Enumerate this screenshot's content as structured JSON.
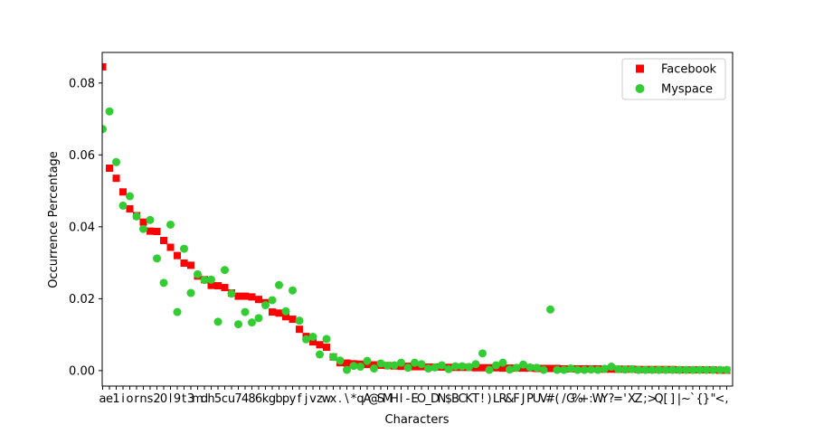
{
  "chart_data": {
    "type": "scatter",
    "title": "",
    "xlabel": "Characters",
    "ylabel": "Occurrence Percentage",
    "categories": [
      "a",
      "e",
      "1",
      "i",
      "o",
      "r",
      "n",
      "s",
      "2",
      "0",
      "l",
      "9",
      "t",
      "3",
      "m",
      "d",
      "h",
      "5",
      "c",
      "u",
      "7",
      "4",
      "8",
      "6",
      "k",
      "g",
      "b",
      "p",
      "y",
      "f",
      "j",
      "v",
      "z",
      "w",
      "x",
      ".",
      "\\",
      "*",
      "q",
      "A",
      "@",
      "S",
      "M",
      "H",
      "I",
      "-",
      "E",
      "O",
      "_",
      "D",
      "N",
      "$",
      "B",
      "C",
      "K",
      "T",
      "!",
      ")",
      "L",
      "R",
      "&",
      "F",
      "J",
      "P",
      "U",
      "V",
      "#",
      "(",
      "/",
      "G",
      "%",
      "+",
      ":",
      "W",
      "Y",
      "?",
      "=",
      "'",
      "X",
      "Z",
      ";",
      ">",
      "Q",
      "[",
      "]",
      "|",
      "~",
      "`",
      "{",
      "}",
      "\"",
      "<",
      ","
    ],
    "ylim": [
      -0.0043,
      0.0885
    ],
    "yticks": [
      0.0,
      0.02,
      0.04,
      0.06,
      0.08
    ],
    "ytick_labels": [
      "0.00",
      "0.02",
      "0.04",
      "0.06",
      "0.08"
    ],
    "grid": false,
    "legend_position": "top-right",
    "series": [
      {
        "name": "Facebook",
        "marker": "square",
        "color": "#ff0000",
        "values": [
          0.0845,
          0.0563,
          0.0535,
          0.0497,
          0.045,
          0.0431,
          0.0413,
          0.0388,
          0.0387,
          0.0362,
          0.0343,
          0.032,
          0.0299,
          0.0293,
          0.0263,
          0.0253,
          0.0237,
          0.0236,
          0.0231,
          0.0216,
          0.0207,
          0.0207,
          0.0205,
          0.0198,
          0.0189,
          0.0163,
          0.016,
          0.015,
          0.0143,
          0.0115,
          0.0095,
          0.008,
          0.0072,
          0.0065,
          0.0038,
          0.0022,
          0.0021,
          0.0019,
          0.0018,
          0.0017,
          0.0016,
          0.0015,
          0.0014,
          0.0013,
          0.0012,
          0.0012,
          0.0011,
          0.0011,
          0.001,
          0.001,
          0.001,
          0.0009,
          0.0009,
          0.0009,
          0.0009,
          0.0008,
          0.0008,
          0.0008,
          0.0008,
          0.0007,
          0.0007,
          0.0007,
          0.0007,
          0.0007,
          0.0006,
          0.0006,
          0.0006,
          0.0006,
          0.0005,
          0.0005,
          0.0005,
          0.0005,
          0.0005,
          0.0005,
          0.0004,
          0.0004,
          0.0004,
          0.0004,
          0.0004,
          0.0003,
          0.0003,
          0.0003,
          0.0003,
          0.0003,
          0.0003,
          0.0002,
          0.0002,
          0.0002,
          0.0002,
          0.0002,
          0.0002,
          0.0001,
          0.0001
        ]
      },
      {
        "name": "Myspace",
        "marker": "circle",
        "color": "#32cd32",
        "values": [
          0.0672,
          0.0721,
          0.058,
          0.0459,
          0.0485,
          0.0429,
          0.0394,
          0.0419,
          0.0312,
          0.0244,
          0.0406,
          0.0163,
          0.0339,
          0.0216,
          0.0268,
          0.0252,
          0.0253,
          0.0136,
          0.028,
          0.0214,
          0.0129,
          0.0163,
          0.0134,
          0.0146,
          0.0182,
          0.0196,
          0.0238,
          0.0165,
          0.0223,
          0.0139,
          0.0087,
          0.0094,
          0.0045,
          0.0088,
          0.0038,
          0.0028,
          0.0002,
          0.0013,
          0.0011,
          0.0027,
          0.0006,
          0.002,
          0.0014,
          0.0015,
          0.0022,
          0.0008,
          0.0022,
          0.0018,
          0.0006,
          0.0009,
          0.0015,
          0.0004,
          0.0012,
          0.0012,
          0.001,
          0.0018,
          0.0048,
          0.0002,
          0.0015,
          0.0022,
          0.0003,
          0.0008,
          0.0017,
          0.0009,
          0.0008,
          0.0002,
          0.017,
          0.0002,
          0.0002,
          0.0006,
          0.0002,
          0.0002,
          0.0003,
          0.0002,
          0.0005,
          0.0011,
          0.0004,
          0.0003,
          0.0004,
          0.0002,
          0.0002,
          0.0002,
          0.0002,
          0.0002,
          0.0002,
          0.0002,
          0.0002,
          0.0002,
          0.0002,
          0.0002,
          0.0002,
          0.0002,
          0.0002
        ]
      }
    ]
  }
}
